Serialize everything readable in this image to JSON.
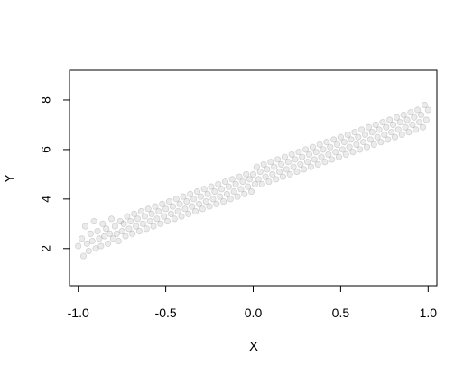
{
  "chart_data": {
    "type": "scatter",
    "title": "",
    "xlabel": "X",
    "ylabel": "Y",
    "xlim": [
      -1.05,
      1.05
    ],
    "ylim": [
      0.5,
      9.2
    ],
    "x_ticks": [
      -1.0,
      -0.5,
      0.0,
      0.5,
      1.0
    ],
    "x_tick_labels": [
      "-1.0",
      "-0.5",
      "0.0",
      "0.5",
      "1.0"
    ],
    "y_ticks": [
      2,
      4,
      6,
      8
    ],
    "y_tick_labels": [
      "2",
      "4",
      "6",
      "8"
    ],
    "grid": false,
    "series": [
      {
        "point_color": "#000000",
        "point_opacity": 0.08,
        "points": [
          [
            -1.0,
            2.1
          ],
          [
            -0.98,
            2.4
          ],
          [
            -0.97,
            1.7
          ],
          [
            -0.96,
            2.9
          ],
          [
            -0.95,
            2.2
          ],
          [
            -0.94,
            1.9
          ],
          [
            -0.93,
            2.6
          ],
          [
            -0.92,
            2.3
          ],
          [
            -0.91,
            3.1
          ],
          [
            -0.9,
            2.0
          ],
          [
            -0.89,
            2.7
          ],
          [
            -0.88,
            2.4
          ],
          [
            -0.87,
            2.1
          ],
          [
            -0.86,
            3.0
          ],
          [
            -0.85,
            2.5
          ],
          [
            -0.84,
            2.8
          ],
          [
            -0.83,
            2.2
          ],
          [
            -0.82,
            2.6
          ],
          [
            -0.81,
            3.2
          ],
          [
            -0.8,
            2.4
          ],
          [
            -0.79,
            2.9
          ],
          [
            -0.78,
            2.6
          ],
          [
            -0.77,
            2.3
          ],
          [
            -0.76,
            3.1
          ],
          [
            -0.75,
            2.7
          ],
          [
            -0.74,
            3.0
          ],
          [
            -0.73,
            2.5
          ],
          [
            -0.72,
            3.3
          ],
          [
            -0.71,
            2.8
          ],
          [
            -0.7,
            3.1
          ],
          [
            -0.69,
            2.6
          ],
          [
            -0.68,
            3.4
          ],
          [
            -0.67,
            2.9
          ],
          [
            -0.66,
            3.2
          ],
          [
            -0.65,
            2.7
          ],
          [
            -0.64,
            3.5
          ],
          [
            -0.63,
            3.0
          ],
          [
            -0.62,
            3.3
          ],
          [
            -0.61,
            2.8
          ],
          [
            -0.6,
            3.6
          ],
          [
            -0.59,
            3.1
          ],
          [
            -0.58,
            3.4
          ],
          [
            -0.57,
            2.9
          ],
          [
            -0.56,
            3.7
          ],
          [
            -0.55,
            3.2
          ],
          [
            -0.54,
            3.5
          ],
          [
            -0.53,
            3.0
          ],
          [
            -0.52,
            3.8
          ],
          [
            -0.51,
            3.3
          ],
          [
            -0.5,
            3.6
          ],
          [
            -0.49,
            3.1
          ],
          [
            -0.48,
            3.9
          ],
          [
            -0.47,
            3.4
          ],
          [
            -0.46,
            3.7
          ],
          [
            -0.45,
            3.2
          ],
          [
            -0.44,
            4.0
          ],
          [
            -0.43,
            3.5
          ],
          [
            -0.42,
            3.8
          ],
          [
            -0.41,
            3.3
          ],
          [
            -0.4,
            4.1
          ],
          [
            -0.39,
            3.6
          ],
          [
            -0.38,
            3.9
          ],
          [
            -0.37,
            3.4
          ],
          [
            -0.36,
            4.2
          ],
          [
            -0.35,
            3.7
          ],
          [
            -0.34,
            4.0
          ],
          [
            -0.33,
            3.5
          ],
          [
            -0.32,
            4.3
          ],
          [
            -0.31,
            3.8
          ],
          [
            -0.3,
            4.1
          ],
          [
            -0.29,
            3.6
          ],
          [
            -0.28,
            4.4
          ],
          [
            -0.27,
            3.9
          ],
          [
            -0.26,
            4.2
          ],
          [
            -0.25,
            3.7
          ],
          [
            -0.24,
            4.5
          ],
          [
            -0.23,
            4.0
          ],
          [
            -0.22,
            4.3
          ],
          [
            -0.21,
            3.8
          ],
          [
            -0.2,
            4.6
          ],
          [
            -0.19,
            4.1
          ],
          [
            -0.18,
            4.4
          ],
          [
            -0.17,
            3.9
          ],
          [
            -0.16,
            4.7
          ],
          [
            -0.15,
            4.2
          ],
          [
            -0.14,
            4.5
          ],
          [
            -0.13,
            4.0
          ],
          [
            -0.12,
            4.8
          ],
          [
            -0.11,
            4.3
          ],
          [
            -0.1,
            4.6
          ],
          [
            -0.09,
            4.1
          ],
          [
            -0.08,
            4.9
          ],
          [
            -0.07,
            4.4
          ],
          [
            -0.06,
            4.7
          ],
          [
            -0.05,
            4.2
          ],
          [
            -0.04,
            5.0
          ],
          [
            -0.03,
            4.5
          ],
          [
            -0.02,
            4.8
          ],
          [
            -0.01,
            4.3
          ],
          [
            0.0,
            5.0
          ],
          [
            0.01,
            4.6
          ],
          [
            0.02,
            5.3
          ],
          [
            0.03,
            4.8
          ],
          [
            0.04,
            5.1
          ],
          [
            0.05,
            4.6
          ],
          [
            0.06,
            5.4
          ],
          [
            0.07,
            4.9
          ],
          [
            0.08,
            5.2
          ],
          [
            0.09,
            4.7
          ],
          [
            0.1,
            5.5
          ],
          [
            0.11,
            5.0
          ],
          [
            0.12,
            5.3
          ],
          [
            0.13,
            4.8
          ],
          [
            0.14,
            5.6
          ],
          [
            0.15,
            5.1
          ],
          [
            0.16,
            5.4
          ],
          [
            0.17,
            4.9
          ],
          [
            0.18,
            5.7
          ],
          [
            0.19,
            5.2
          ],
          [
            0.2,
            5.5
          ],
          [
            0.21,
            5.0
          ],
          [
            0.22,
            5.8
          ],
          [
            0.23,
            5.3
          ],
          [
            0.24,
            5.6
          ],
          [
            0.25,
            5.1
          ],
          [
            0.26,
            5.9
          ],
          [
            0.27,
            5.4
          ],
          [
            0.28,
            5.7
          ],
          [
            0.29,
            5.2
          ],
          [
            0.3,
            6.0
          ],
          [
            0.31,
            5.5
          ],
          [
            0.32,
            5.8
          ],
          [
            0.33,
            5.3
          ],
          [
            0.34,
            6.1
          ],
          [
            0.35,
            5.6
          ],
          [
            0.36,
            5.9
          ],
          [
            0.37,
            5.4
          ],
          [
            0.38,
            6.2
          ],
          [
            0.39,
            5.7
          ],
          [
            0.4,
            6.0
          ],
          [
            0.41,
            5.5
          ],
          [
            0.42,
            6.3
          ],
          [
            0.43,
            5.8
          ],
          [
            0.44,
            6.1
          ],
          [
            0.45,
            5.6
          ],
          [
            0.46,
            6.4
          ],
          [
            0.47,
            5.9
          ],
          [
            0.48,
            6.2
          ],
          [
            0.49,
            5.7
          ],
          [
            0.5,
            6.5
          ],
          [
            0.51,
            6.0
          ],
          [
            0.52,
            6.3
          ],
          [
            0.53,
            5.8
          ],
          [
            0.54,
            6.6
          ],
          [
            0.55,
            6.1
          ],
          [
            0.56,
            6.4
          ],
          [
            0.57,
            5.9
          ],
          [
            0.58,
            6.7
          ],
          [
            0.59,
            6.2
          ],
          [
            0.6,
            6.5
          ],
          [
            0.61,
            6.0
          ],
          [
            0.62,
            6.8
          ],
          [
            0.63,
            6.3
          ],
          [
            0.64,
            6.6
          ],
          [
            0.65,
            6.1
          ],
          [
            0.66,
            6.9
          ],
          [
            0.67,
            6.4
          ],
          [
            0.68,
            6.7
          ],
          [
            0.69,
            6.2
          ],
          [
            0.7,
            7.0
          ],
          [
            0.71,
            6.5
          ],
          [
            0.72,
            6.8
          ],
          [
            0.73,
            6.3
          ],
          [
            0.74,
            7.1
          ],
          [
            0.75,
            6.6
          ],
          [
            0.76,
            6.9
          ],
          [
            0.77,
            6.4
          ],
          [
            0.78,
            7.2
          ],
          [
            0.79,
            6.7
          ],
          [
            0.8,
            7.0
          ],
          [
            0.81,
            6.5
          ],
          [
            0.82,
            7.3
          ],
          [
            0.83,
            6.8
          ],
          [
            0.84,
            7.1
          ],
          [
            0.85,
            6.6
          ],
          [
            0.86,
            7.4
          ],
          [
            0.87,
            6.9
          ],
          [
            0.88,
            7.2
          ],
          [
            0.89,
            6.7
          ],
          [
            0.9,
            7.5
          ],
          [
            0.91,
            7.0
          ],
          [
            0.92,
            7.3
          ],
          [
            0.93,
            6.8
          ],
          [
            0.94,
            7.6
          ],
          [
            0.95,
            7.1
          ],
          [
            0.96,
            7.4
          ],
          [
            0.97,
            6.9
          ],
          [
            0.98,
            7.8
          ],
          [
            0.99,
            7.2
          ],
          [
            1.0,
            7.6
          ]
        ]
      }
    ]
  }
}
